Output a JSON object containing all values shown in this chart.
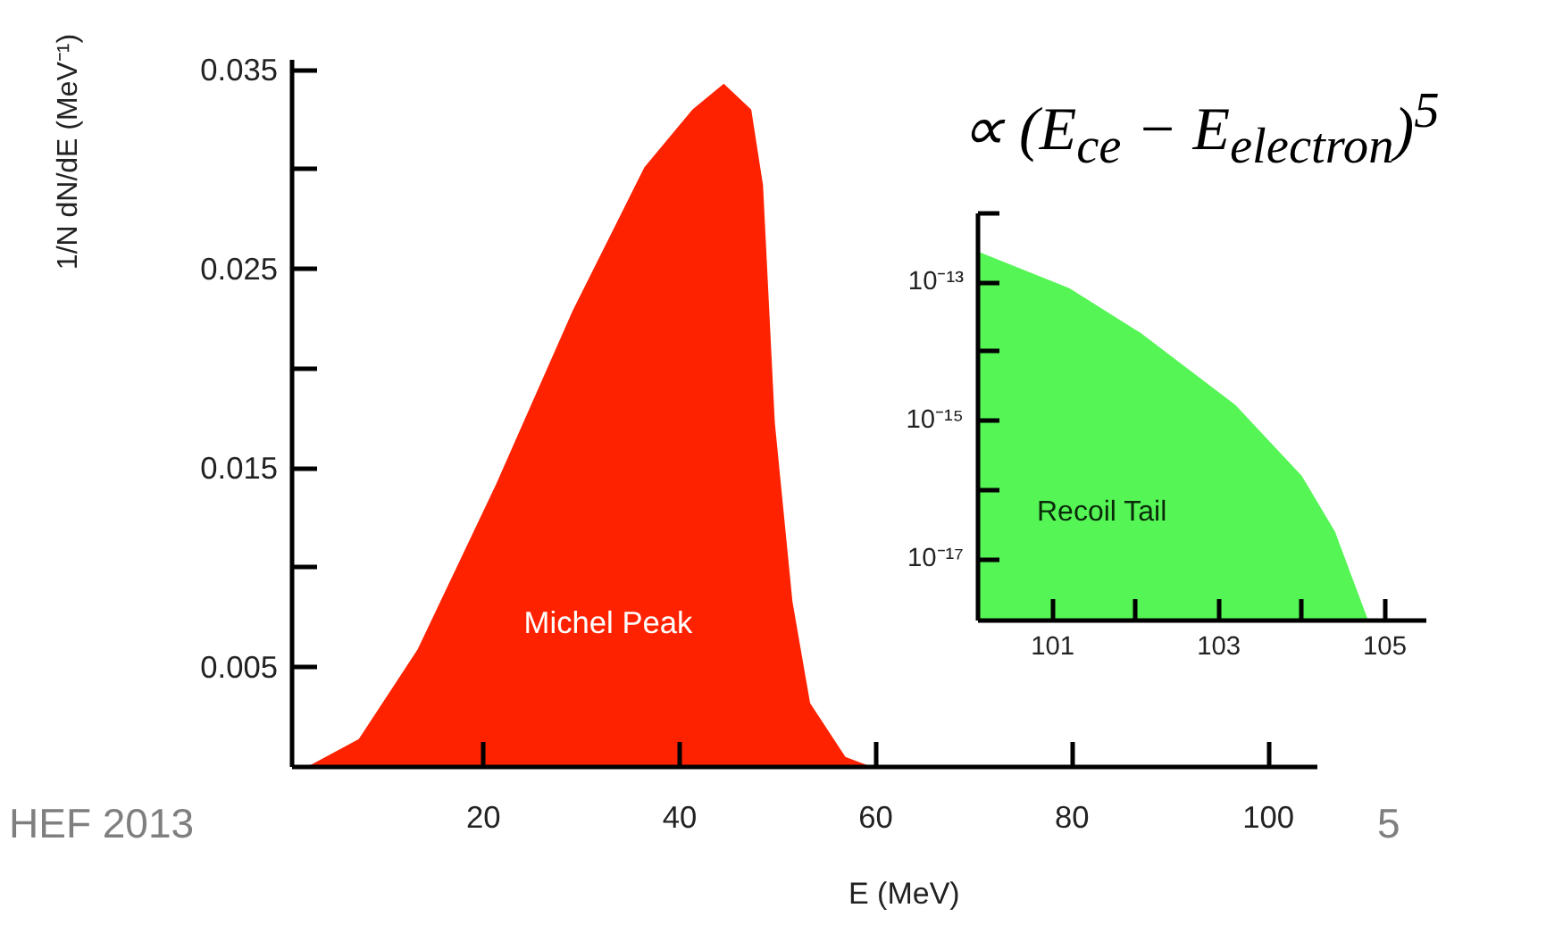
{
  "chart_data": [
    {
      "type": "area",
      "xlabel": "E (MeV)",
      "ylabel": "1/N dN/dE (MeV⁻¹)",
      "x": [
        0.5,
        2.4,
        7.3,
        13.3,
        21.3,
        29.1,
        36.4,
        41.3,
        44.5,
        47.3,
        48.5,
        49.7,
        51.5,
        53.3,
        56.9,
        59.6
      ],
      "series": [
        {
          "color": "#ff2200",
          "values": [
            0,
            0.0001,
            0.0014,
            0.0059,
            0.0142,
            0.0229,
            0.0301,
            0.033,
            0.0343,
            0.033,
            0.0292,
            0.0173,
            0.0083,
            0.0032,
            0.0005,
            0
          ]
        }
      ],
      "xlim": [
        0.5,
        105
      ],
      "ylim": [
        0,
        0.0355
      ],
      "xticks": [
        20,
        40,
        60,
        80,
        100
      ],
      "yticks": [
        {
          "value": 0.005,
          "label": "0.005"
        },
        {
          "value": 0.01,
          "label": null
        },
        {
          "value": 0.015,
          "label": "0.015"
        },
        {
          "value": 0.02,
          "label": null
        },
        {
          "value": 0.025,
          "label": "0.025"
        },
        {
          "value": 0.03,
          "label": null
        },
        {
          "value": 0.035,
          "label": "0.035"
        }
      ],
      "grid": false,
      "annotations": [
        "Michel Peak",
        "∝ (E$_{ce}$ − E$_{electron}$)$^{5}$",
        "HEF 2013",
        "5"
      ]
    },
    {
      "type": "area",
      "log": "y",
      "x": [
        100.1,
        101.2,
        102.05,
        103.2,
        104.0,
        104.4,
        104.8
      ],
      "series": [
        {
          "color": "#55f555",
          "values": [
            2.8e-13,
            8.3e-14,
            1.9e-14,
            1.7e-15,
            1.6e-16,
            2.5e-17,
            1.3e-18
          ]
        }
      ],
      "xlim": [
        100.1,
        105.5
      ],
      "ylim": [
        1.3e-18,
        1e-12
      ],
      "xticks": [
        {
          "value": 101,
          "label": "101"
        },
        {
          "value": 102,
          "label": null
        },
        {
          "value": 103,
          "label": "103"
        },
        {
          "value": 104,
          "label": null
        },
        {
          "value": 105,
          "label": "105"
        }
      ],
      "yticks": [
        {
          "value": 1e-17,
          "label": "10⁻¹⁷"
        },
        {
          "value": 1e-16,
          "label": null
        },
        {
          "value": 1e-15,
          "label": "10⁻¹⁵"
        },
        {
          "value": 1e-14,
          "label": null
        },
        {
          "value": 1e-13,
          "label": "10⁻¹³"
        },
        {
          "value": 1e-12,
          "label": null
        }
      ],
      "grid": false,
      "annotations": [
        "Recoil Tail"
      ]
    }
  ]
}
